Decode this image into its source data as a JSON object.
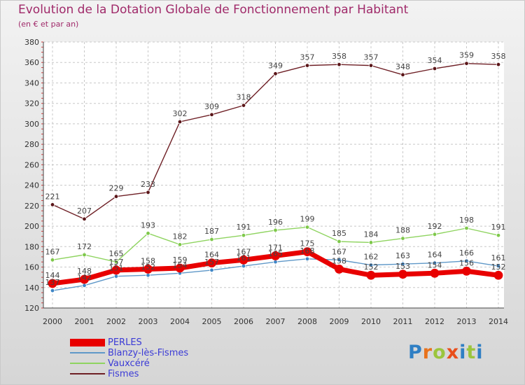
{
  "chart_data": {
    "type": "line",
    "title": "Evolution de la Dotation Globale de Fonctionnement par Habitant",
    "subtitle": "(en € et par an)",
    "xlabel": "",
    "ylabel": "",
    "ylim": [
      120,
      380
    ],
    "ytick_step": 20,
    "categories": [
      "2000",
      "2001",
      "2002",
      "2003",
      "2004",
      "2005",
      "2006",
      "2007",
      "2008",
      "2009",
      "2010",
      "2011",
      "2012",
      "2013",
      "2014"
    ],
    "series": [
      {
        "name": "Fismes",
        "color": "#6e1f25",
        "values": [
          221,
          207,
          229,
          233,
          302,
          309,
          318,
          349,
          357,
          358,
          357,
          348,
          354,
          359,
          358
        ]
      },
      {
        "name": "Vauxcéré",
        "color": "#8fd460",
        "values": [
          167,
          172,
          165,
          193,
          182,
          187,
          191,
          196,
          199,
          185,
          184,
          188,
          192,
          198,
          191
        ]
      },
      {
        "name": "Blanzy-lès-Fismes",
        "color": "#5f98c8",
        "values": [
          137,
          142,
          151,
          152,
          154,
          157,
          161,
          165,
          168,
          167,
          162,
          163,
          164,
          166,
          161
        ]
      },
      {
        "name": "PERLES",
        "color": "#e80000",
        "values": [
          144,
          148,
          157,
          158,
          159,
          164,
          167,
          171,
          175,
          158,
          152,
          153,
          154,
          156,
          152
        ]
      }
    ],
    "legend": {
      "placement": "bottom-left",
      "order": [
        "PERLES",
        "Blanzy-lès-Fismes",
        "Vauxcéré",
        "Fismes"
      ]
    },
    "grid": true
  },
  "brand": {
    "text": "Proxiti"
  }
}
